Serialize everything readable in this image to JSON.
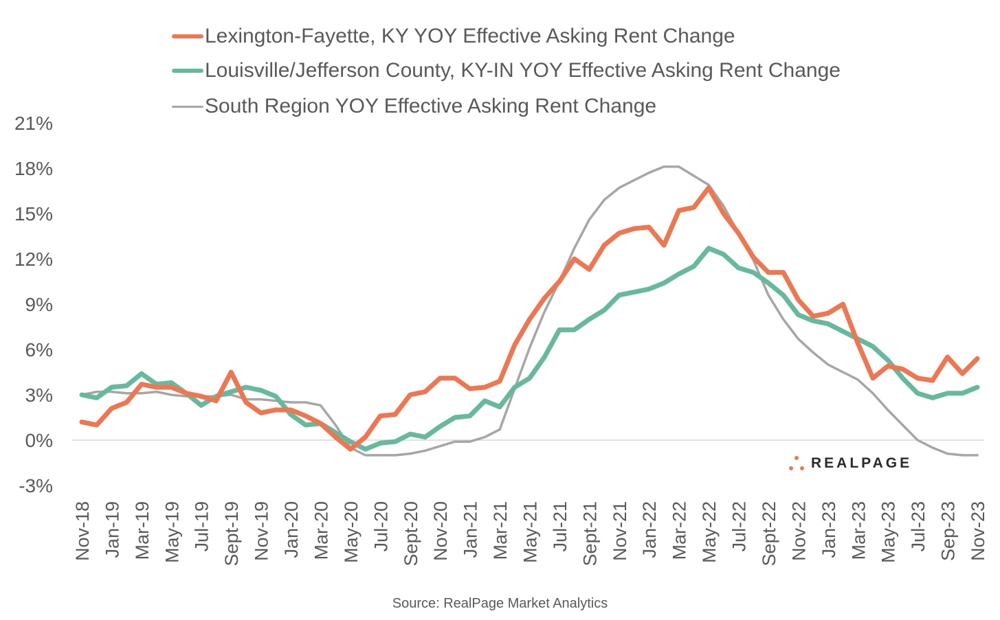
{
  "chart_data": {
    "type": "line",
    "title": "",
    "xlabel": "",
    "ylabel": "",
    "ylim": [
      -3,
      21
    ],
    "yticks": [
      "-3%",
      "0%",
      "3%",
      "6%",
      "9%",
      "12%",
      "15%",
      "18%",
      "21%"
    ],
    "ytick_values": [
      -3,
      0,
      3,
      6,
      9,
      12,
      15,
      18,
      21
    ],
    "x_start": "Nov-18",
    "x_end": "Nov-23",
    "x_frequency": "monthly",
    "tick_labels": [
      "Nov-18",
      "Jan-19",
      "Mar-19",
      "May-19",
      "Jul-19",
      "Sept-19",
      "Nov-19",
      "Jan-20",
      "Mar-20",
      "May-20",
      "Jul-20",
      "Sept-20",
      "Nov-20",
      "Jan-21",
      "Mar-21",
      "May-21",
      "Jul-21",
      "Sept-21",
      "Nov-21",
      "Jan-22",
      "Mar-22",
      "May-22",
      "Jul-22",
      "Sept-22",
      "Nov-22",
      "Jan-23",
      "Mar-23",
      "May-23",
      "Jul-23",
      "Sep-23",
      "Nov-23"
    ],
    "grid": false,
    "zero_line": true,
    "legend_position": "top",
    "series": [
      {
        "name": "Lexington-Fayette, KY YOY Effective Asking Rent Change",
        "color": "#EE7752",
        "values": [
          1.2,
          1.0,
          2.1,
          2.5,
          3.7,
          3.5,
          3.5,
          3.1,
          2.9,
          2.6,
          4.5,
          2.5,
          1.8,
          2.0,
          2.0,
          1.6,
          1.1,
          0.2,
          -0.6,
          0.2,
          1.6,
          1.7,
          3.0,
          3.2,
          4.1,
          4.1,
          3.4,
          3.5,
          3.9,
          6.3,
          8.0,
          9.4,
          10.5,
          12.0,
          11.3,
          12.9,
          13.7,
          14.0,
          14.1,
          12.9,
          15.2,
          15.4,
          16.7,
          15.0,
          13.7,
          12.1,
          11.1,
          11.1,
          9.3,
          8.2,
          8.4,
          9.0,
          6.4,
          4.1,
          4.9,
          4.7,
          4.1,
          3.95,
          5.5,
          4.4,
          5.4
        ]
      },
      {
        "name": "Louisville/Jefferson County, KY-IN YOY Effective Asking Rent Change",
        "color": "#66B99C",
        "values": [
          3.0,
          2.8,
          3.5,
          3.6,
          4.4,
          3.7,
          3.8,
          3.1,
          2.3,
          2.9,
          3.2,
          3.5,
          3.3,
          2.9,
          1.7,
          1.0,
          1.1,
          0.5,
          -0.1,
          -0.6,
          -0.2,
          -0.1,
          0.4,
          0.2,
          0.9,
          1.5,
          1.6,
          2.6,
          2.2,
          3.5,
          4.1,
          5.5,
          7.3,
          7.3,
          8.0,
          8.6,
          9.6,
          9.8,
          10.0,
          10.4,
          11.0,
          11.5,
          12.7,
          12.3,
          11.4,
          11.1,
          10.4,
          9.6,
          8.3,
          7.9,
          7.7,
          7.2,
          6.7,
          6.2,
          5.3,
          4.1,
          3.1,
          2.8,
          3.1,
          3.1,
          3.5
        ]
      },
      {
        "name": "South Region YOY Effective Asking Rent Change",
        "color": "#A6A6A6",
        "values": [
          3.0,
          3.2,
          3.2,
          3.1,
          3.1,
          3.2,
          3.0,
          2.9,
          2.9,
          2.9,
          3.0,
          2.7,
          2.7,
          2.6,
          2.5,
          2.5,
          2.3,
          1.0,
          -0.5,
          -1.0,
          -1.0,
          -1.0,
          -0.9,
          -0.7,
          -0.4,
          -0.1,
          -0.1,
          0.2,
          0.7,
          3.4,
          6.1,
          8.5,
          10.5,
          12.7,
          14.6,
          15.9,
          16.7,
          17.2,
          17.7,
          18.1,
          18.1,
          17.5,
          16.9,
          15.5,
          13.7,
          11.9,
          9.6,
          8.0,
          6.7,
          5.8,
          5.0,
          4.5,
          4.0,
          3.1,
          2.0,
          1.0,
          0.0,
          -0.5,
          -0.9,
          -1.0,
          -1.0
        ]
      }
    ]
  },
  "source": "Source: RealPage Market Analytics",
  "logo": {
    "text": "REALPAGE",
    "color": "#EE7752"
  }
}
